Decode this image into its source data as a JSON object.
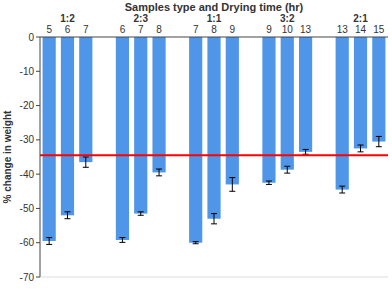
{
  "chart_data": {
    "type": "bar",
    "title": "Samples type and Drying time (hr)",
    "y_label": "% change in weight",
    "group_labels": [
      "1:2",
      "2:3",
      "1:1",
      "3:2",
      "2:1"
    ],
    "categories": [
      "5",
      "6",
      "7",
      "6",
      "7",
      "8",
      "7",
      "8",
      "9",
      "9",
      "10",
      "13",
      "13",
      "14",
      "15"
    ],
    "values": [
      -59.5,
      -52,
      -36.5,
      -59.2,
      -51.5,
      -39.5,
      -60,
      -53,
      -43,
      -42.5,
      -38.7,
      -33.5,
      -44.5,
      -32.5,
      -30.5
    ],
    "errors": [
      1,
      1,
      1.5,
      0.7,
      0.5,
      1,
      0.3,
      1.5,
      2,
      0.5,
      1,
      0.7,
      1,
      1,
      1.5
    ],
    "color": "#4f95e8",
    "reference_line": {
      "value": -34.5,
      "color": "#ff0000"
    },
    "ylim": [
      -70,
      0
    ],
    "yticks": [
      -70,
      -60,
      -50,
      -40,
      -30,
      -20,
      -10,
      0
    ],
    "grid": false
  }
}
